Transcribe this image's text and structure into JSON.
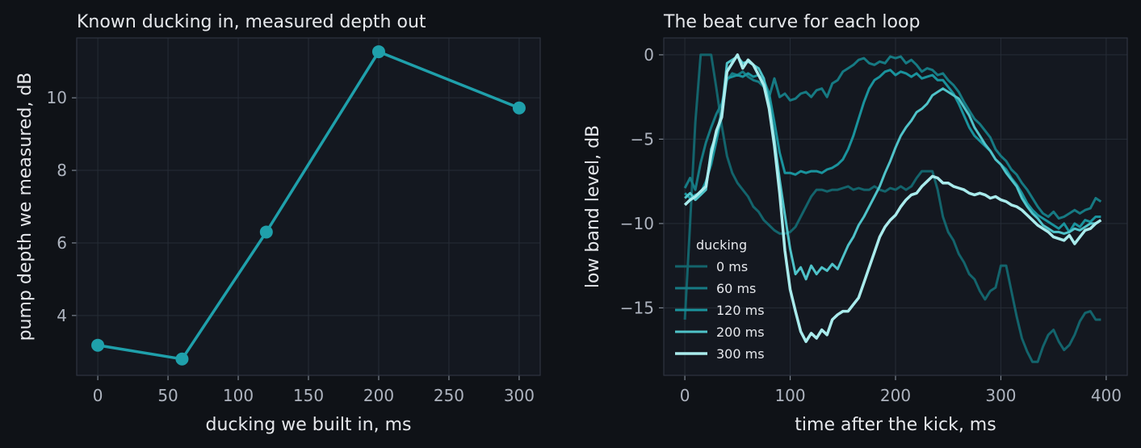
{
  "chart_data": [
    {
      "type": "line",
      "title": "Known ducking in, measured depth out",
      "xlabel": "ducking we built in, ms",
      "ylabel": "pump depth we measured, dB",
      "xlim": [
        -15,
        315
      ],
      "ylim": [
        2.35,
        11.65
      ],
      "xticks": [
        0,
        50,
        100,
        150,
        200,
        250,
        300
      ],
      "yticks": [
        4,
        6,
        8,
        10
      ],
      "grid": true,
      "color": "#1fa0ab",
      "markers": true,
      "x": [
        0,
        60,
        120,
        200,
        300
      ],
      "y": [
        3.18,
        2.8,
        6.3,
        11.27,
        9.72
      ]
    },
    {
      "type": "line",
      "title": "The beat curve for each loop",
      "xlabel": "time after the kick, ms",
      "ylabel": "low band level, dB",
      "xlim": [
        -20,
        420
      ],
      "ylim": [
        -19,
        1
      ],
      "xticks": [
        0,
        100,
        200,
        300,
        400
      ],
      "yticks": [
        0,
        -5,
        -10,
        -15
      ],
      "ytick_labels": [
        "0",
        "−5",
        "−10",
        "−15"
      ],
      "grid": true,
      "legend": {
        "title": "ducking",
        "placement": "lower-left"
      },
      "series": [
        {
          "name": "0 ms",
          "color": "#13646c",
          "width": 3,
          "x": [
            0,
            5,
            10,
            15,
            20,
            25,
            30,
            35,
            40,
            45,
            50,
            55,
            60,
            65,
            70,
            75,
            80,
            85,
            90,
            95,
            100,
            105,
            110,
            115,
            120,
            125,
            130,
            135,
            140,
            145,
            150,
            155,
            160,
            165,
            170,
            175,
            180,
            185,
            190,
            195,
            200,
            205,
            210,
            215,
            220,
            225,
            230,
            235,
            240,
            245,
            250,
            255,
            260,
            265,
            270,
            275,
            280,
            285,
            290,
            295,
            300,
            305,
            310,
            315,
            320,
            325,
            330,
            335,
            340,
            345,
            350,
            355,
            360,
            365,
            370,
            375,
            380,
            385,
            390,
            395
          ],
          "y": [
            -15.7,
            -10,
            -4,
            0,
            0,
            0,
            -2,
            -4.2,
            -6,
            -7,
            -7.6,
            -8,
            -8.4,
            -9,
            -9.3,
            -9.8,
            -10.1,
            -10.4,
            -10.6,
            -10.6,
            -10.5,
            -10.2,
            -9.6,
            -9,
            -8.4,
            -8,
            -8,
            -8.1,
            -8,
            -8,
            -7.9,
            -7.8,
            -8,
            -7.9,
            -8,
            -8,
            -7.8,
            -8,
            -8.1,
            -7.9,
            -8,
            -7.8,
            -8,
            -7.8,
            -7.3,
            -6.9,
            -6.9,
            -6.9,
            -8,
            -9.6,
            -10.5,
            -11,
            -11.8,
            -12.3,
            -13,
            -13.3,
            -14,
            -14.5,
            -14,
            -13.8,
            -12.5,
            -12.5,
            -14,
            -15.5,
            -16.8,
            -17.6,
            -18.2,
            -18.2,
            -17.3,
            -16.6,
            -16.3,
            -17,
            -17.5,
            -17.2,
            -16.6,
            -15.8,
            -15.3,
            -15.2,
            -15.7,
            -15.7
          ]
        },
        {
          "name": "60 ms",
          "color": "#167a83",
          "width": 3,
          "x": [
            0,
            5,
            10,
            15,
            20,
            25,
            30,
            35,
            40,
            45,
            50,
            55,
            60,
            65,
            70,
            75,
            80,
            85,
            90,
            95,
            100,
            105,
            110,
            115,
            120,
            125,
            130,
            135,
            140,
            145,
            150,
            155,
            160,
            165,
            170,
            175,
            180,
            185,
            190,
            195,
            200,
            205,
            210,
            215,
            220,
            225,
            230,
            235,
            240,
            245,
            250,
            255,
            260,
            265,
            270,
            275,
            280,
            285,
            290,
            295,
            300,
            305,
            310,
            315,
            320,
            325,
            330,
            335,
            340,
            345,
            350,
            355,
            360,
            365,
            370,
            375,
            380,
            385,
            390,
            395
          ],
          "y": [
            -7.9,
            -7.3,
            -8,
            -6.4,
            -5.2,
            -4.3,
            -3.5,
            -2.9,
            -1.5,
            -1.1,
            -1.2,
            -1.0,
            -1.3,
            -1.5,
            -1.6,
            -1.9,
            -2.5,
            -1.4,
            -2.5,
            -2.3,
            -2.7,
            -2.6,
            -2.3,
            -2.2,
            -2.5,
            -2.1,
            -2.0,
            -2.5,
            -1.7,
            -1.5,
            -1.0,
            -0.8,
            -0.6,
            -0.3,
            -0.2,
            -0.5,
            -0.6,
            -0.4,
            -0.5,
            -0.1,
            -0.2,
            -0.1,
            -0.5,
            -0.3,
            -0.6,
            -1.0,
            -0.8,
            -0.9,
            -1.2,
            -1.1,
            -1.5,
            -1.8,
            -2.2,
            -2.8,
            -3.3,
            -3.8,
            -4.1,
            -4.5,
            -4.9,
            -5.6,
            -6.0,
            -6.3,
            -6.8,
            -7.1,
            -7.6,
            -8.0,
            -8.5,
            -9.0,
            -9.4,
            -9.6,
            -9.3,
            -9.7,
            -9.6,
            -9.4,
            -9.2,
            -9.4,
            -9.2,
            -9.1,
            -8.5,
            -8.7
          ]
        },
        {
          "name": "120 ms",
          "color": "#1a939d",
          "width": 3,
          "x": [
            0,
            5,
            10,
            15,
            20,
            25,
            30,
            35,
            40,
            45,
            50,
            55,
            60,
            65,
            70,
            75,
            80,
            85,
            90,
            95,
            100,
            105,
            110,
            115,
            120,
            125,
            130,
            135,
            140,
            145,
            150,
            155,
            160,
            165,
            170,
            175,
            180,
            185,
            190,
            195,
            200,
            205,
            210,
            215,
            220,
            225,
            230,
            235,
            240,
            245,
            250,
            255,
            260,
            265,
            270,
            275,
            280,
            285,
            290,
            295,
            300,
            305,
            310,
            315,
            320,
            325,
            330,
            335,
            340,
            345,
            350,
            355,
            360,
            365,
            370,
            375,
            380,
            385,
            390,
            395
          ],
          "y": [
            -8.2,
            -8.5,
            -8.3,
            -8.2,
            -7.5,
            -6.5,
            -5.1,
            -3.6,
            -1.4,
            -1.3,
            -1.2,
            -1.3,
            -1.1,
            -1.3,
            -1.2,
            -1.5,
            -2.3,
            -4.0,
            -5.8,
            -7.0,
            -7.0,
            -7.1,
            -6.9,
            -7.0,
            -6.9,
            -6.9,
            -7.0,
            -6.8,
            -6.7,
            -6.5,
            -6.2,
            -5.6,
            -4.8,
            -3.8,
            -2.8,
            -2.0,
            -1.5,
            -1.3,
            -1.0,
            -0.9,
            -1.2,
            -1.0,
            -1.1,
            -1.3,
            -1.1,
            -1.4,
            -1.3,
            -1.2,
            -1.5,
            -1.5,
            -1.9,
            -2.3,
            -2.9,
            -3.6,
            -4.3,
            -4.8,
            -5.1,
            -5.4,
            -5.7,
            -6.2,
            -6.5,
            -6.8,
            -7.3,
            -7.7,
            -8.2,
            -8.8,
            -9.2,
            -9.5,
            -9.7,
            -9.9,
            -10.1,
            -10.3,
            -10.0,
            -10.5,
            -10.0,
            -10.2,
            -9.8,
            -9.9,
            -9.6,
            -9.6
          ]
        },
        {
          "name": "200 ms",
          "color": "#4fc3c9",
          "width": 3,
          "x": [
            0,
            5,
            10,
            15,
            20,
            25,
            30,
            35,
            40,
            45,
            50,
            55,
            60,
            65,
            70,
            75,
            80,
            85,
            90,
            95,
            100,
            105,
            110,
            115,
            120,
            125,
            130,
            135,
            140,
            145,
            150,
            155,
            160,
            165,
            170,
            175,
            180,
            185,
            190,
            195,
            200,
            205,
            210,
            215,
            220,
            225,
            230,
            235,
            240,
            245,
            250,
            255,
            260,
            265,
            270,
            275,
            280,
            285,
            290,
            295,
            300,
            305,
            310,
            315,
            320,
            325,
            330,
            335,
            340,
            345,
            350,
            355,
            360,
            365,
            370,
            375,
            380,
            385,
            390,
            395
          ],
          "y": [
            -8.5,
            -8.2,
            -8.6,
            -8.3,
            -8.0,
            -5.6,
            -4.7,
            -3.4,
            -0.5,
            -0.3,
            -0.1,
            -0.5,
            -0.4,
            -0.6,
            -0.8,
            -1.4,
            -2.9,
            -5.0,
            -7.4,
            -9.5,
            -11.5,
            -13.0,
            -12.6,
            -13.3,
            -12.5,
            -13.0,
            -12.6,
            -12.8,
            -12.4,
            -12.7,
            -12.0,
            -11.3,
            -10.8,
            -10.1,
            -9.6,
            -9.0,
            -8.4,
            -7.8,
            -7.0,
            -6.3,
            -5.5,
            -4.8,
            -4.3,
            -3.9,
            -3.4,
            -3.2,
            -2.9,
            -2.4,
            -2.2,
            -2.0,
            -2.2,
            -2.4,
            -2.6,
            -3.1,
            -3.6,
            -4.3,
            -4.8,
            -5.3,
            -5.7,
            -6.2,
            -6.5,
            -7.0,
            -7.4,
            -7.8,
            -8.5,
            -9.0,
            -9.4,
            -9.7,
            -10.1,
            -10.3,
            -10.5,
            -10.5,
            -10.6,
            -10.5,
            -10.3,
            -10.4,
            -10.2,
            -10.0,
            -10.0,
            -9.8
          ]
        },
        {
          "name": "300 ms",
          "color": "#a9ebec",
          "width": 3.5,
          "x": [
            0,
            5,
            10,
            15,
            20,
            25,
            30,
            35,
            40,
            45,
            50,
            55,
            60,
            65,
            70,
            75,
            80,
            85,
            90,
            95,
            100,
            105,
            110,
            115,
            120,
            125,
            130,
            135,
            140,
            145,
            150,
            155,
            160,
            165,
            170,
            175,
            180,
            185,
            190,
            195,
            200,
            205,
            210,
            215,
            220,
            225,
            230,
            235,
            240,
            245,
            250,
            255,
            260,
            265,
            270,
            275,
            280,
            285,
            290,
            295,
            300,
            305,
            310,
            315,
            320,
            325,
            330,
            335,
            340,
            345,
            350,
            355,
            360,
            365,
            370,
            375,
            380,
            385,
            390,
            395
          ],
          "y": [
            -8.9,
            -8.6,
            -8.4,
            -8.1,
            -7.8,
            -5.9,
            -4.5,
            -3.7,
            -1.0,
            -0.5,
            0,
            -0.8,
            -0.3,
            -0.6,
            -1.2,
            -1.8,
            -3.2,
            -5.4,
            -8.2,
            -11.6,
            -13.9,
            -15.2,
            -16.4,
            -17.0,
            -16.5,
            -16.8,
            -16.3,
            -16.6,
            -15.7,
            -15.4,
            -15.2,
            -15.2,
            -14.8,
            -14.4,
            -13.5,
            -12.6,
            -11.7,
            -10.8,
            -10.2,
            -9.8,
            -9.5,
            -9.0,
            -8.6,
            -8.3,
            -8.2,
            -7.8,
            -7.5,
            -7.2,
            -7.3,
            -7.6,
            -7.6,
            -7.8,
            -7.9,
            -8.0,
            -8.2,
            -8.3,
            -8.2,
            -8.3,
            -8.5,
            -8.4,
            -8.6,
            -8.7,
            -8.9,
            -9.0,
            -9.2,
            -9.5,
            -9.8,
            -10.1,
            -10.3,
            -10.5,
            -10.8,
            -10.9,
            -11.0,
            -10.7,
            -11.2,
            -10.8,
            -10.4,
            -10.3,
            -10.0,
            -9.8
          ]
        }
      ]
    }
  ]
}
